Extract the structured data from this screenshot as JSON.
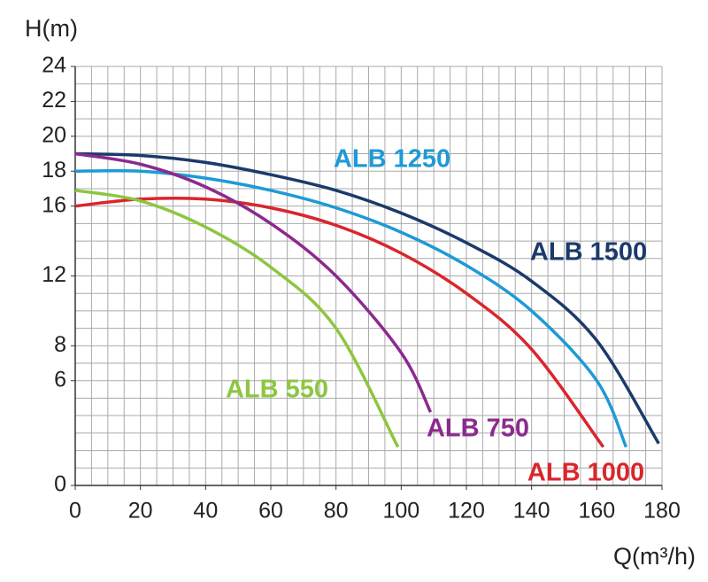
{
  "chart_data": {
    "type": "line",
    "y_label": "H(m)",
    "x_label": "Q(m³/h)",
    "xlim": [
      0,
      180
    ],
    "xticks": [
      0,
      20,
      40,
      60,
      80,
      100,
      120,
      140,
      160,
      180
    ],
    "ylim": [
      0,
      24
    ],
    "yticks": [
      0,
      6,
      8,
      12,
      16,
      18,
      20,
      22,
      24
    ],
    "grid": true,
    "xgrid_step": 5,
    "ygrid_step": 1,
    "series": [
      {
        "name": "ALB 1500",
        "color": "#1b3a6b",
        "x": [
          0,
          20,
          40,
          60,
          80,
          100,
          120,
          140,
          160,
          179
        ],
        "values": [
          19,
          18.9,
          18.5,
          17.8,
          16.9,
          15.6,
          13.9,
          11.7,
          8.3,
          2.4
        ]
      },
      {
        "name": "ALB 1250",
        "color": "#1e9ad6",
        "x": [
          0,
          20,
          40,
          60,
          80,
          100,
          120,
          140,
          160,
          169
        ],
        "values": [
          18,
          18,
          17.6,
          16.9,
          15.9,
          14.5,
          12.6,
          10,
          6,
          2.2
        ]
      },
      {
        "name": "ALB 1000",
        "color": "#d9262c",
        "x": [
          0,
          20,
          40,
          60,
          80,
          100,
          120,
          140,
          162
        ],
        "values": [
          16,
          16.4,
          16.4,
          15.9,
          14.9,
          13.3,
          11,
          7.8,
          2.2
        ]
      },
      {
        "name": "ALB 750",
        "color": "#8b2a8e",
        "x": [
          0,
          20,
          40,
          60,
          80,
          100,
          109
        ],
        "values": [
          19,
          18.4,
          17.1,
          15,
          12,
          7.6,
          4.2
        ]
      },
      {
        "name": "ALB 550",
        "color": "#8dc63f",
        "x": [
          0,
          20,
          40,
          60,
          80,
          99
        ],
        "values": [
          16.9,
          16.3,
          14.8,
          12.5,
          9,
          2.2
        ]
      }
    ]
  }
}
